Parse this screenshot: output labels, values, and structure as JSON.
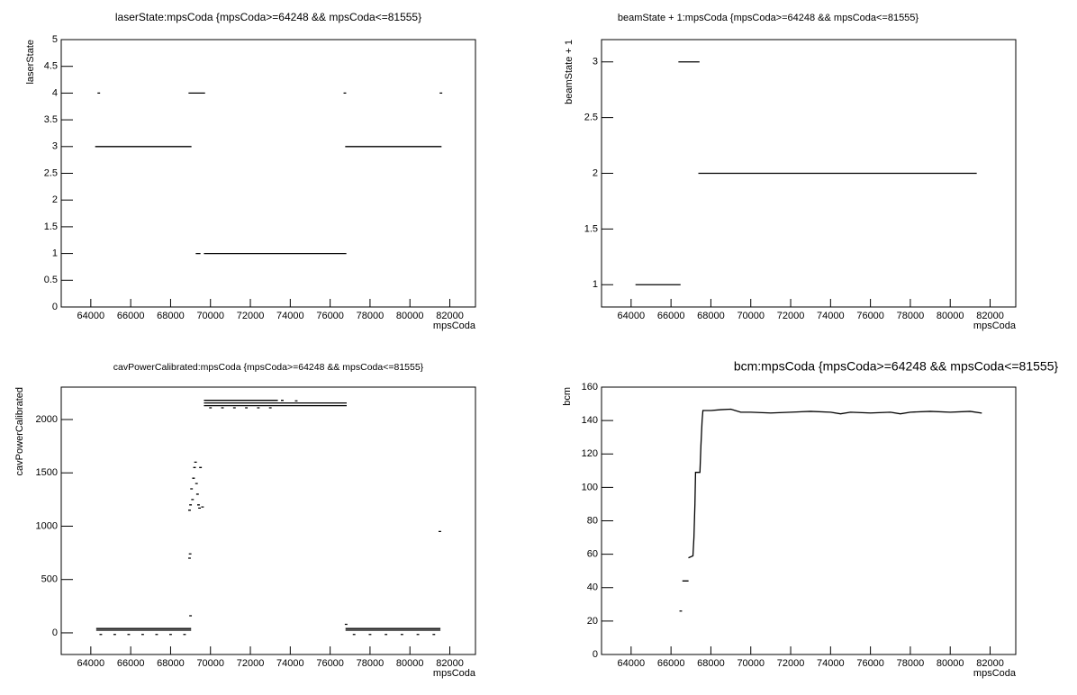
{
  "chart_data": [
    {
      "type": "line",
      "title": "laserState:mpsCoda {mpsCoda>=64248 && mpsCoda<=81555}",
      "xlabel": "mpsCoda",
      "ylabel": "laserState",
      "color": "#000000",
      "x": [
        64400,
        null,
        64248,
        69018,
        null,
        68928,
        69700,
        null,
        69290,
        69470,
        null,
        69700,
        76784,
        null,
        76784,
        81555,
        null,
        76739,
        null,
        81555
      ],
      "values": [
        4,
        null,
        3,
        3,
        null,
        4,
        4,
        null,
        1,
        1,
        null,
        1,
        1,
        null,
        3,
        3,
        null,
        4,
        null,
        4
      ],
      "xlim": [
        62517,
        83286
      ],
      "xticks": [
        64000,
        66000,
        68000,
        70000,
        72000,
        74000,
        76000,
        78000,
        80000,
        82000
      ],
      "ylim": [
        0,
        5
      ],
      "yticks": [
        0,
        0.5,
        1,
        1.5,
        2,
        2.5,
        3,
        3.5,
        4,
        4.5,
        5
      ]
    },
    {
      "type": "line",
      "title": "beamState + 1:mpsCoda {mpsCoda>=64248 && mpsCoda<=81555}",
      "xlabel": "mpsCoda",
      "ylabel": "beamState + 1",
      "color": "#000000",
      "x": [
        64248,
        66450,
        null,
        66400,
        67400,
        null,
        67400,
        81300
      ],
      "values": [
        1,
        1,
        null,
        3,
        3,
        null,
        2,
        2
      ],
      "xlim": [
        62517,
        83286
      ],
      "xticks": [
        64000,
        66000,
        68000,
        70000,
        72000,
        74000,
        76000,
        78000,
        80000,
        82000
      ],
      "ylim": [
        0.8,
        3.2
      ],
      "yticks": [
        1,
        1.5,
        2,
        2.5,
        3
      ]
    },
    {
      "type": "line",
      "title": "cavPowerCalibrated:mpsCoda {mpsCoda>=64248 && mpsCoda<=81555}",
      "xlabel": "mpsCoda",
      "ylabel": "cavPowerCalibrated",
      "color": "#000000",
      "x": [
        64300,
        69000,
        null,
        64300,
        69000,
        null,
        64500,
        null,
        65200,
        null,
        65900,
        null,
        66600,
        null,
        67300,
        null,
        68000,
        null,
        68700,
        null,
        69700,
        73350,
        null,
        69700,
        76800,
        null,
        69700,
        76800,
        null,
        73600,
        null,
        74300,
        null,
        70000,
        null,
        70600,
        null,
        71200,
        null,
        71800,
        null,
        72400,
        null,
        73000,
        null,
        68950,
        null,
        68980,
        null,
        69000,
        null,
        68950,
        null,
        69000,
        null,
        69050,
        null,
        69100,
        null,
        69150,
        null,
        69200,
        null,
        69250,
        null,
        69300,
        null,
        69350,
        null,
        69400,
        null,
        69450,
        null,
        69500,
        null,
        69600,
        null,
        76800,
        null,
        76800,
        81500,
        null,
        76800,
        81500,
        null,
        77200,
        null,
        78000,
        null,
        78800,
        null,
        79600,
        null,
        80400,
        null,
        81200,
        null,
        81500
      ],
      "values": [
        40,
        40,
        null,
        25,
        25,
        null,
        -15,
        null,
        -15,
        null,
        -15,
        null,
        -15,
        null,
        -15,
        null,
        -15,
        null,
        -15,
        null,
        2180,
        2180,
        null,
        2155,
        2155,
        null,
        2130,
        2130,
        null,
        2180,
        null,
        2175,
        null,
        2110,
        null,
        2110,
        null,
        2110,
        null,
        2110,
        null,
        2110,
        null,
        2110,
        null,
        700,
        null,
        740,
        null,
        160,
        null,
        1150,
        null,
        1200,
        null,
        1350,
        null,
        1250,
        null,
        1450,
        null,
        1550,
        null,
        1600,
        null,
        1400,
        null,
        1300,
        null,
        1200,
        null,
        1170,
        null,
        1550,
        null,
        1180,
        null,
        80,
        null,
        40,
        40,
        null,
        25,
        25,
        null,
        -15,
        null,
        -15,
        null,
        -15,
        null,
        -15,
        null,
        -15,
        null,
        -15,
        null,
        950
      ],
      "xlim": [
        62517,
        83286
      ],
      "xticks": [
        64000,
        66000,
        68000,
        70000,
        72000,
        74000,
        76000,
        78000,
        80000,
        82000
      ],
      "ylim": [
        -203,
        2304
      ],
      "yticks": [
        0,
        500,
        1000,
        1500,
        2000
      ]
    },
    {
      "type": "line",
      "title": "bcm:mpsCoda {mpsCoda>=64248 && mpsCoda<=81555}",
      "xlabel": "mpsCoda",
      "ylabel": "bcm",
      "color": "#000000",
      "x": [
        66489,
        null,
        66600,
        66850,
        null,
        66900,
        67100,
        67150,
        67200,
        67230,
        67450,
        67500,
        67560,
        67600,
        68000,
        68500,
        69000,
        69500,
        70000,
        71000,
        72000,
        73000,
        74000,
        74500,
        75000,
        76000,
        77000,
        77500,
        78000,
        79000,
        80000,
        81000,
        81555
      ],
      "values": [
        26,
        null,
        44,
        44,
        null,
        58,
        59,
        70,
        90,
        109,
        109,
        125,
        140,
        146,
        146,
        146.5,
        146.8,
        145,
        145,
        144.5,
        145,
        145.5,
        145,
        144,
        145,
        144.5,
        145,
        144,
        145,
        145.5,
        145,
        145.5,
        144.5
      ],
      "xlim": [
        62517,
        83286
      ],
      "xticks": [
        64000,
        66000,
        68000,
        70000,
        72000,
        74000,
        76000,
        78000,
        80000,
        82000
      ],
      "ylim": [
        0,
        160
      ],
      "yticks": [
        0,
        20,
        40,
        60,
        80,
        100,
        120,
        140,
        160
      ]
    }
  ]
}
